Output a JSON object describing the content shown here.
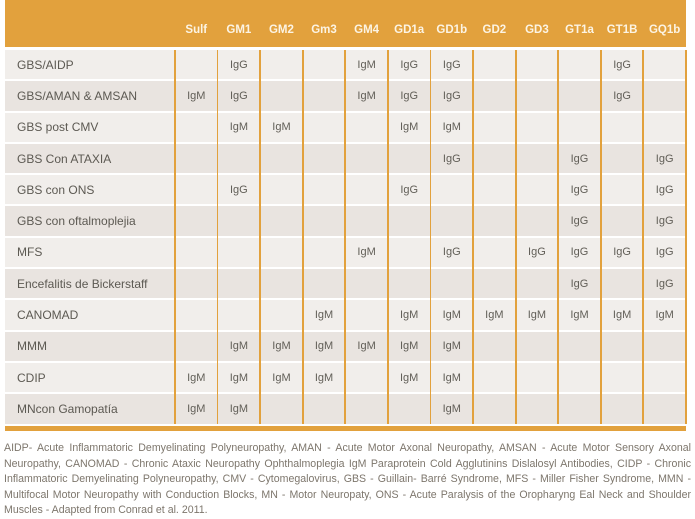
{
  "table": {
    "columns": [
      "Sulf",
      "GM1",
      "GM2",
      "Gm3",
      "GM4",
      "GD1a",
      "GD1b",
      "GD2",
      "GD3",
      "GT1a",
      "GT1B",
      "GQ1b"
    ],
    "rows": [
      {
        "label": "GBS/AIDP",
        "cells": [
          "",
          "IgG",
          "",
          "",
          "IgM",
          "IgG",
          "IgG",
          "",
          "",
          "",
          "IgG",
          ""
        ]
      },
      {
        "label": "GBS/AMAN & AMSAN",
        "cells": [
          "IgM",
          "IgG",
          "",
          "",
          "IgM",
          "IgG",
          "IgG",
          "",
          "",
          "",
          "IgG",
          ""
        ]
      },
      {
        "label": "GBS post CMV",
        "cells": [
          "",
          "IgM",
          "IgM",
          "",
          "",
          "IgM",
          "IgM",
          "",
          "",
          "",
          "",
          ""
        ]
      },
      {
        "label": "GBS Con ATAXIA",
        "cells": [
          "",
          "",
          "",
          "",
          "",
          "",
          "IgG",
          "",
          "",
          "IgG",
          "",
          "IgG"
        ]
      },
      {
        "label": "GBS con ONS",
        "cells": [
          "",
          "IgG",
          "",
          "",
          "",
          "IgG",
          "",
          "",
          "",
          "IgG",
          "",
          "IgG"
        ]
      },
      {
        "label": "GBS con oftalmoplejia",
        "cells": [
          "",
          "",
          "",
          "",
          "",
          "",
          "",
          "",
          "",
          "IgG",
          "",
          "IgG"
        ]
      },
      {
        "label": "MFS",
        "cells": [
          "",
          "",
          "",
          "",
          "IgM",
          "",
          "IgG",
          "",
          "IgG",
          "IgG",
          "IgG",
          "IgG"
        ]
      },
      {
        "label": "Encefalitis de Bickerstaff",
        "cells": [
          "",
          "",
          "",
          "",
          "",
          "",
          "",
          "",
          "",
          "IgG",
          "",
          "IgG"
        ]
      },
      {
        "label": "CANOMAD",
        "cells": [
          "",
          "",
          "",
          "IgM",
          "",
          "IgM",
          "IgM",
          "IgM",
          "IgM",
          "IgM",
          "IgM",
          "IgM"
        ]
      },
      {
        "label": "MMM",
        "cells": [
          "",
          "IgM",
          "IgM",
          "IgM",
          "IgM",
          "IgM",
          "IgM",
          "",
          "",
          "",
          "",
          ""
        ]
      },
      {
        "label": "CDIP",
        "cells": [
          "IgM",
          "IgM",
          "IgM",
          "IgM",
          "",
          "IgM",
          "IgM",
          "",
          "",
          "",
          "",
          ""
        ]
      },
      {
        "label": "MNcon Gamopatía",
        "cells": [
          "IgM",
          "IgM",
          "",
          "",
          "",
          "",
          "IgM",
          "",
          "",
          "",
          "",
          ""
        ]
      }
    ]
  },
  "footnote": {
    "text": "AIDP- Acute Inflammatoric Demyelinating Polyneuropathy, AMAN - Acute Motor Axonal Neuropathy, AMSAN - Acute Motor Sensory Axonal Neuropathy, CANOMAD - Chronic Ataxic Neuropathy Ophthalmoplegia IgM Paraprotein Cold Agglutinins Dislalosyl Antibodies, CIDP - Chronic Inflammatoric Demyelinating Polyneuropathy, CMV - Cytomegalovirus, GBS - Guillain- Barré Syndrome, MFS - Miller Fisher Syndrome, MMN - Multifocal Motor Neuropathy with Conduction Blocks, MN - Motor Neuropaty, ONS - Acute Paralysis of the Oropharyng Eal Neck and Shoulder Muscles - Adapted from Conrad et al. 2011."
  },
  "colors": {
    "accent_orange": "#E2A13D",
    "row_light": "#F1EEEB",
    "row_dark": "#E9E4E0",
    "header_text": "#FCF4E4",
    "label_text": "#5C5952",
    "cell_text": "#615E57",
    "footnote_text": "#7D766C"
  }
}
